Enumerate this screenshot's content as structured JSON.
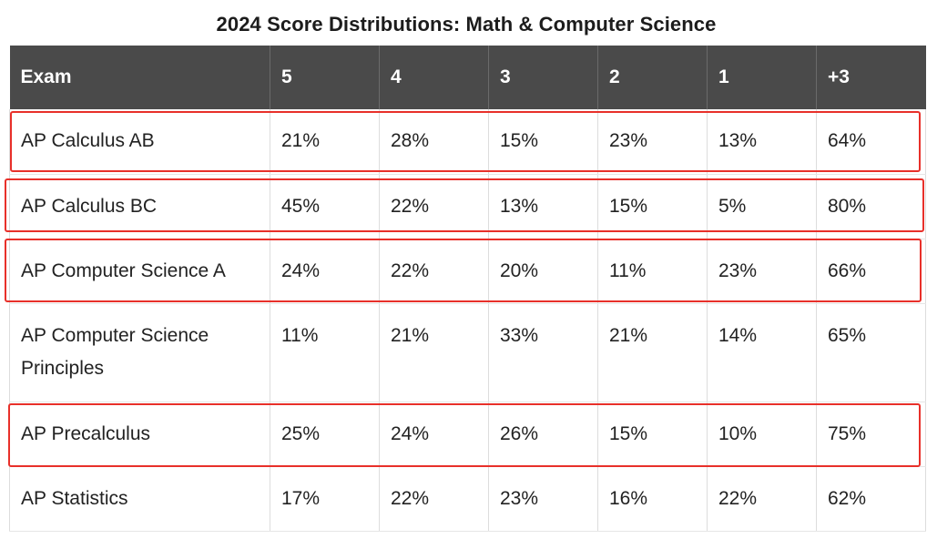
{
  "title": "2024 Score Distributions: Math & Computer Science",
  "header": [
    "Exam",
    "5",
    "4",
    "3",
    "2",
    "1",
    "+3"
  ],
  "rows": [
    {
      "exam": "AP Calculus AB",
      "cells": [
        "21%",
        "28%",
        "15%",
        "23%",
        "13%",
        "64%"
      ],
      "highlighted": true
    },
    {
      "exam": "AP Calculus BC",
      "cells": [
        "45%",
        "22%",
        "13%",
        "15%",
        "5%",
        "80%"
      ],
      "highlighted": true
    },
    {
      "exam": "AP Computer Science A",
      "cells": [
        "24%",
        "22%",
        "20%",
        "11%",
        "23%",
        "66%"
      ],
      "highlighted": true
    },
    {
      "exam": "AP Computer Science Principles",
      "cells": [
        "11%",
        "21%",
        "33%",
        "21%",
        "14%",
        "65%"
      ],
      "highlighted": false
    },
    {
      "exam": "AP Precalculus",
      "cells": [
        "25%",
        "24%",
        "26%",
        "15%",
        "10%",
        "75%"
      ],
      "highlighted": true
    },
    {
      "exam": "AP Statistics",
      "cells": [
        "17%",
        "22%",
        "23%",
        "16%",
        "22%",
        "62%"
      ],
      "highlighted": false
    }
  ],
  "colors": {
    "header_bg": "#4a4a4a",
    "header_text": "#ffffff",
    "highlight_border": "#e8302a"
  }
}
